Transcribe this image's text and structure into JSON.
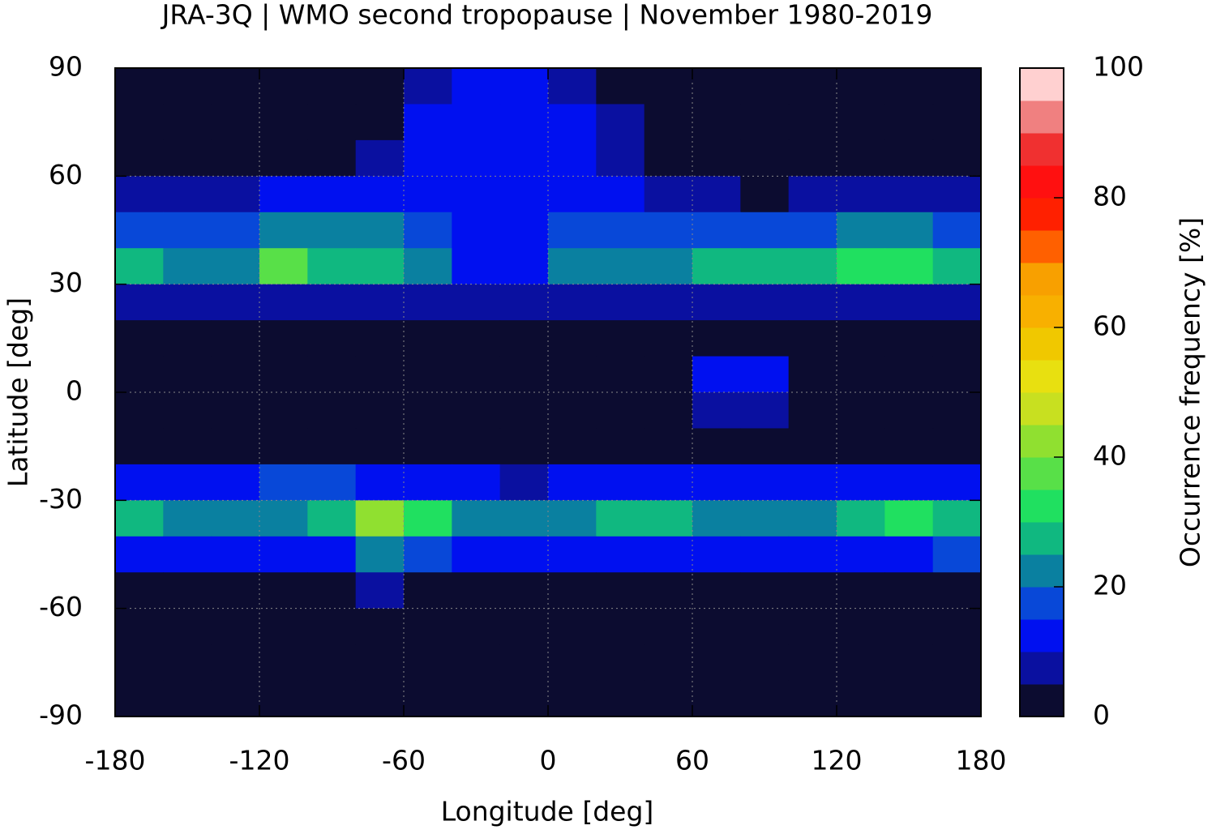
{
  "chart_data": {
    "type": "heatmap",
    "title": "JRA-3Q | WMO second tropopause | November 1980-2019",
    "x_label": "Longitude [deg]",
    "y_label": "Latitude [deg]",
    "xlim": [
      -180,
      180
    ],
    "xticks": [
      -180,
      -120,
      -60,
      0,
      60,
      120,
      180
    ],
    "ylim": [
      -90,
      90
    ],
    "yticks": [
      -90,
      -60,
      -30,
      0,
      30,
      60,
      90
    ],
    "grid": true,
    "lon": [
      -170,
      -150,
      -130,
      -110,
      -90,
      -70,
      -50,
      -30,
      -10,
      10,
      30,
      50,
      70,
      90,
      110,
      130,
      150,
      170
    ],
    "lat": [
      85,
      75,
      65,
      55,
      45,
      35,
      25,
      15,
      5,
      -5,
      -15,
      -25,
      -35,
      -45,
      -55,
      -65,
      -75,
      -85
    ],
    "z": [
      [
        0,
        0,
        0,
        0,
        0,
        0,
        5,
        10,
        10,
        5,
        0,
        0,
        0,
        0,
        0,
        0,
        0,
        0
      ],
      [
        0,
        0,
        0,
        0,
        0,
        0,
        10,
        10,
        10,
        10,
        5,
        0,
        0,
        0,
        0,
        0,
        0,
        0
      ],
      [
        0,
        0,
        0,
        0,
        0,
        5,
        10,
        10,
        10,
        10,
        5,
        0,
        0,
        0,
        0,
        0,
        0,
        0
      ],
      [
        5,
        5,
        5,
        10,
        10,
        10,
        10,
        10,
        10,
        10,
        10,
        5,
        5,
        0,
        5,
        5,
        5,
        5
      ],
      [
        15,
        15,
        15,
        20,
        20,
        20,
        15,
        10,
        10,
        15,
        15,
        15,
        15,
        15,
        15,
        20,
        20,
        15
      ],
      [
        25,
        20,
        20,
        35,
        25,
        25,
        20,
        10,
        10,
        20,
        20,
        20,
        25,
        25,
        25,
        30,
        30,
        25
      ],
      [
        5,
        5,
        5,
        5,
        5,
        5,
        5,
        5,
        5,
        5,
        5,
        5,
        5,
        5,
        5,
        5,
        5,
        5
      ],
      [
        0,
        0,
        0,
        0,
        0,
        0,
        0,
        0,
        0,
        0,
        0,
        0,
        0,
        0,
        0,
        0,
        0,
        0
      ],
      [
        0,
        0,
        0,
        0,
        0,
        0,
        0,
        0,
        0,
        0,
        0,
        0,
        10,
        10,
        0,
        0,
        0,
        0
      ],
      [
        0,
        0,
        0,
        0,
        0,
        0,
        0,
        0,
        0,
        0,
        0,
        0,
        5,
        5,
        0,
        0,
        0,
        0
      ],
      [
        0,
        0,
        0,
        0,
        0,
        0,
        0,
        0,
        0,
        0,
        0,
        0,
        0,
        0,
        0,
        0,
        0,
        0
      ],
      [
        10,
        10,
        10,
        15,
        15,
        10,
        10,
        10,
        5,
        10,
        10,
        10,
        10,
        10,
        10,
        10,
        10,
        10
      ],
      [
        25,
        20,
        20,
        20,
        25,
        40,
        30,
        20,
        20,
        20,
        25,
        25,
        20,
        20,
        20,
        25,
        30,
        25
      ],
      [
        10,
        10,
        10,
        10,
        10,
        20,
        15,
        10,
        10,
        10,
        10,
        10,
        10,
        10,
        10,
        10,
        10,
        15
      ],
      [
        0,
        0,
        0,
        0,
        0,
        5,
        0,
        0,
        0,
        0,
        0,
        0,
        0,
        0,
        0,
        0,
        0,
        0
      ],
      [
        0,
        0,
        0,
        0,
        0,
        0,
        0,
        0,
        0,
        0,
        0,
        0,
        0,
        0,
        0,
        0,
        0,
        0
      ],
      [
        0,
        0,
        0,
        0,
        0,
        0,
        0,
        0,
        0,
        0,
        0,
        0,
        0,
        0,
        0,
        0,
        0,
        0
      ],
      [
        0,
        0,
        0,
        0,
        0,
        0,
        0,
        0,
        0,
        0,
        0,
        0,
        0,
        0,
        0,
        0,
        0,
        0
      ]
    ],
    "colorbar": {
      "label": "Occurrence frequency [%]",
      "levels": [
        0,
        5,
        10,
        15,
        20,
        25,
        30,
        35,
        40,
        45,
        50,
        55,
        60,
        65,
        70,
        75,
        80,
        85,
        90,
        95,
        100
      ],
      "colors": [
        "#0c0c30",
        "#0a10a0",
        "#0010f0",
        "#0848d8",
        "#0a80a0",
        "#10b880",
        "#20e060",
        "#58e048",
        "#90e030",
        "#c8e020",
        "#e8e010",
        "#f0c800",
        "#f8b000",
        "#f8a000",
        "#ff6000",
        "#ff2000",
        "#ff1010",
        "#f03030",
        "#f08080",
        "#ffd0d0"
      ],
      "ticks": [
        0,
        20,
        40,
        60,
        80,
        100
      ]
    }
  }
}
